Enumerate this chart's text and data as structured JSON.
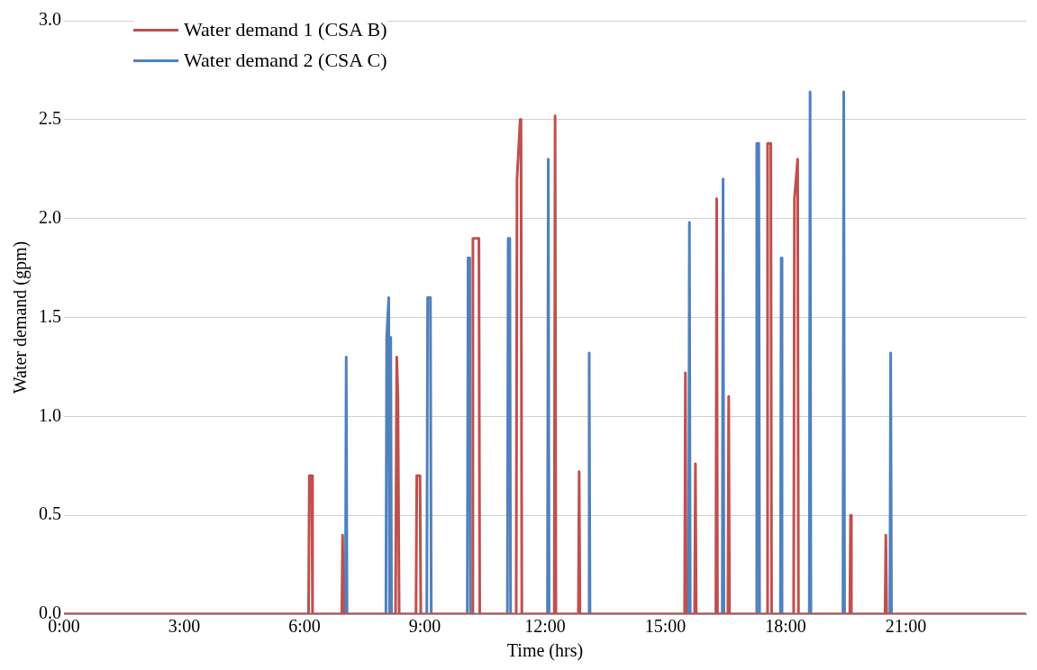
{
  "chart_data": {
    "type": "line",
    "xlabel": "Time (hrs)",
    "ylabel": "Water demand (gpm)",
    "xlim": [
      0,
      24
    ],
    "xticks": [
      {
        "value": 0,
        "label": "0:00"
      },
      {
        "value": 3,
        "label": "3:00"
      },
      {
        "value": 6,
        "label": "6:00"
      },
      {
        "value": 9,
        "label": "9:00"
      },
      {
        "value": 12,
        "label": "12:00"
      },
      {
        "value": 15,
        "label": "15:00"
      },
      {
        "value": 18,
        "label": "18:00"
      },
      {
        "value": 21,
        "label": "21:00"
      }
    ],
    "ylim": [
      0,
      3
    ],
    "yticks": [
      {
        "value": 0,
        "label": "0.0"
      },
      {
        "value": 0.5,
        "label": "0.5"
      },
      {
        "value": 1,
        "label": "1.0"
      },
      {
        "value": 1.5,
        "label": "1.5"
      },
      {
        "value": 2,
        "label": "2.0"
      },
      {
        "value": 2.5,
        "label": "2.5"
      },
      {
        "value": 3,
        "label": "3.0"
      }
    ],
    "grid": "y",
    "legend": "top left",
    "marker": "none",
    "line_style": "solid",
    "series": [
      {
        "name": "Water demand 1 (CSA B)",
        "color": "#c0504d",
        "x": [
          0,
          6.1,
          6.12,
          6.18,
          6.2,
          6.93,
          6.95,
          6.97,
          8.27,
          8.3,
          8.33,
          8.36,
          8.78,
          8.8,
          8.88,
          8.9,
          10.18,
          10.2,
          10.35,
          10.37,
          11.28,
          11.3,
          11.38,
          11.4,
          11.42,
          12.23,
          12.25,
          12.27,
          12.83,
          12.85,
          12.87,
          15.48,
          15.5,
          15.52,
          15.73,
          15.75,
          15.77,
          16.26,
          16.28,
          16.3,
          16.56,
          16.58,
          16.6,
          17.53,
          17.55,
          17.63,
          17.65,
          18.2,
          18.22,
          18.3,
          18.32,
          19.6,
          19.62,
          19.64,
          20.48,
          20.5,
          20.52,
          24
        ],
        "values": [
          0,
          0,
          0.7,
          0.7,
          0,
          0,
          0.4,
          0,
          0,
          1.3,
          1.1,
          0,
          0,
          0.7,
          0.7,
          0,
          0,
          1.9,
          1.9,
          0,
          0,
          2.2,
          2.5,
          2.5,
          0,
          0,
          2.52,
          0,
          0,
          0.72,
          0,
          0,
          1.22,
          0,
          0,
          0.76,
          0,
          0,
          2.1,
          0,
          0,
          1.1,
          0,
          0,
          2.38,
          2.38,
          0,
          0,
          2.1,
          2.3,
          0,
          0,
          0.5,
          0,
          0,
          0.4,
          0,
          0
        ]
      },
      {
        "name": "Water demand 2 (CSA C)",
        "color": "#4f81bd",
        "x": [
          0,
          7.02,
          7.04,
          7.06,
          8.03,
          8.05,
          8.1,
          8.12,
          8.15,
          8.17,
          9.05,
          9.07,
          9.14,
          9.16,
          10.06,
          10.08,
          10.12,
          10.14,
          11.06,
          11.08,
          11.12,
          11.14,
          12.06,
          12.08,
          12.1,
          13.08,
          13.1,
          13.12,
          15.58,
          15.6,
          15.62,
          16.42,
          16.44,
          16.46,
          17.26,
          17.28,
          17.33,
          17.35,
          17.87,
          17.89,
          17.91,
          18.59,
          18.61,
          18.63,
          19.43,
          19.45,
          19.47,
          20.6,
          20.62,
          20.64,
          24
        ],
        "values": [
          0,
          0,
          1.3,
          0,
          0,
          1.4,
          1.6,
          0,
          1.4,
          0,
          0,
          1.6,
          1.6,
          0,
          0,
          1.8,
          1.8,
          0,
          0,
          1.9,
          1.9,
          0,
          0,
          2.3,
          0,
          0,
          1.32,
          0,
          0,
          1.98,
          0,
          0,
          2.2,
          0,
          0,
          2.38,
          2.38,
          0,
          0,
          1.8,
          0,
          0,
          2.64,
          0,
          0,
          2.64,
          0,
          0,
          1.32,
          0,
          0
        ]
      }
    ]
  }
}
